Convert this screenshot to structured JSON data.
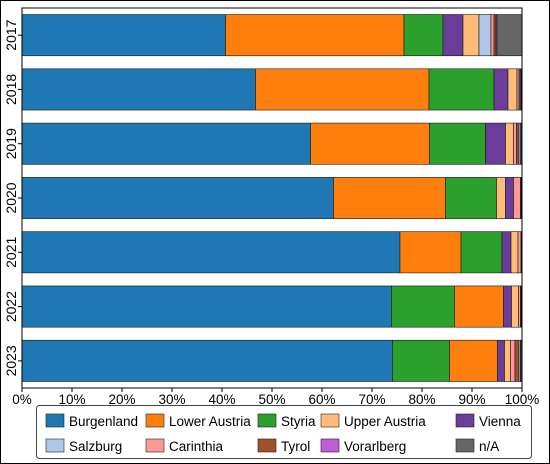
{
  "chart_data": {
    "type": "bar",
    "orientation": "horizontal",
    "stacked": true,
    "categories": [
      "2017",
      "2018",
      "2019",
      "2020",
      "2021",
      "2022",
      "2023"
    ],
    "series": [
      {
        "name": "Burgenland",
        "color": "#1f77b4",
        "values": [
          40.7,
          46.7,
          57.7,
          62.3,
          75.6,
          73.9,
          74.1
        ]
      },
      {
        "name": "Lower Austria",
        "color": "#ff7f0e",
        "values": [
          35.7,
          34.7,
          23.8,
          22.4,
          12.2,
          9.8,
          9.6
        ]
      },
      {
        "name": "Styria",
        "color": "#2ca02c",
        "values": [
          7.8,
          13.0,
          11.2,
          10.2,
          8.2,
          12.6,
          11.4
        ]
      },
      {
        "name": "Upper Austria",
        "color": "#ffbb78",
        "values": [
          3.2,
          1.8,
          1.6,
          1.8,
          1.4,
          1.4,
          1.2
        ]
      },
      {
        "name": "Vienna",
        "color": "#6a3d9a",
        "values": [
          4.0,
          2.8,
          4.0,
          1.6,
          1.8,
          1.6,
          1.4
        ]
      },
      {
        "name": "Salzburg",
        "color": "#aec7e8",
        "values": [
          2.4,
          0.2,
          0.3,
          0.1,
          0.1,
          0.1,
          0.3
        ]
      },
      {
        "name": "Carinthia",
        "color": "#ff9896",
        "values": [
          0.6,
          0.4,
          0.6,
          1.4,
          0.6,
          0.4,
          0.9
        ]
      },
      {
        "name": "Tyrol",
        "color": "#a0522d",
        "values": [
          0.4,
          0.1,
          0.5,
          0.1,
          0.1,
          0.1,
          0.8
        ]
      },
      {
        "name": "Vorarlberg",
        "color": "#bf5fd8",
        "values": [
          0.2,
          0.2,
          0.2,
          0.1,
          0.0,
          0.1,
          0.1
        ]
      },
      {
        "name": "n/A",
        "color": "#666666",
        "values": [
          5.0,
          0.1,
          0.1,
          0.0,
          0.0,
          0.0,
          0.2
        ]
      }
    ],
    "xlim": [
      0,
      100
    ],
    "xticks": {
      "values": [
        0,
        10,
        20,
        30,
        40,
        50,
        60,
        70,
        80,
        90,
        100
      ],
      "labels": [
        "0%",
        "10%",
        "20%",
        "30%",
        "40%",
        "50%",
        "60%",
        "70%",
        "80%",
        "90%",
        "100%"
      ]
    },
    "grid": false,
    "legend_position": "bottom"
  }
}
